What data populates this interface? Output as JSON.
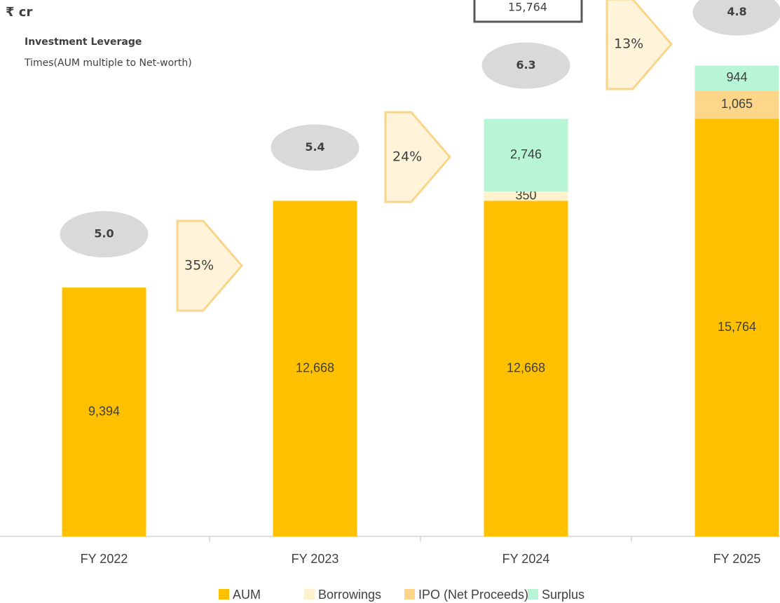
{
  "chart_data": {
    "type": "stacked_bar",
    "unit": "₹ cr",
    "categories": [
      "FY 2022",
      "FY 2023",
      "FY 2024",
      "FY 2025"
    ],
    "series": [
      {
        "name": "AUM",
        "color": "#FFC000",
        "values": [
          9394,
          12668,
          12668,
          15764
        ],
        "value_labels": [
          "9,394",
          "12,668",
          "12,668",
          "15,764"
        ]
      },
      {
        "name": "Borrowings",
        "color": "#FFF2CC",
        "values": [
          null,
          null,
          350,
          null
        ],
        "value_labels": [
          null,
          null,
          "350",
          null
        ]
      },
      {
        "name": "IPO (Net Proceeds)",
        "color": "#FDD68A",
        "values": [
          null,
          null,
          null,
          1065
        ],
        "value_labels": [
          null,
          null,
          null,
          "1,065"
        ]
      },
      {
        "name": "Surplus",
        "color": "#B8F5D6",
        "values": [
          null,
          null,
          2746,
          944
        ],
        "value_labels": [
          null,
          null,
          "2,746",
          "944"
        ]
      }
    ],
    "ylim": [
      0,
      20250
    ],
    "leverage": {
      "title": "Investment Leverage",
      "subtitle": "Times(AUM multiple to Net-worth)",
      "values": [
        5.0,
        5.4,
        6.3,
        4.8
      ],
      "value_labels": [
        "5.0",
        "5.4",
        "6.3",
        "4.8"
      ]
    },
    "growth": {
      "values": [
        35,
        24,
        13
      ],
      "value_labels": [
        "35%",
        "24%",
        "13%"
      ]
    },
    "annotation": "15,764",
    "legend": "bottom"
  }
}
